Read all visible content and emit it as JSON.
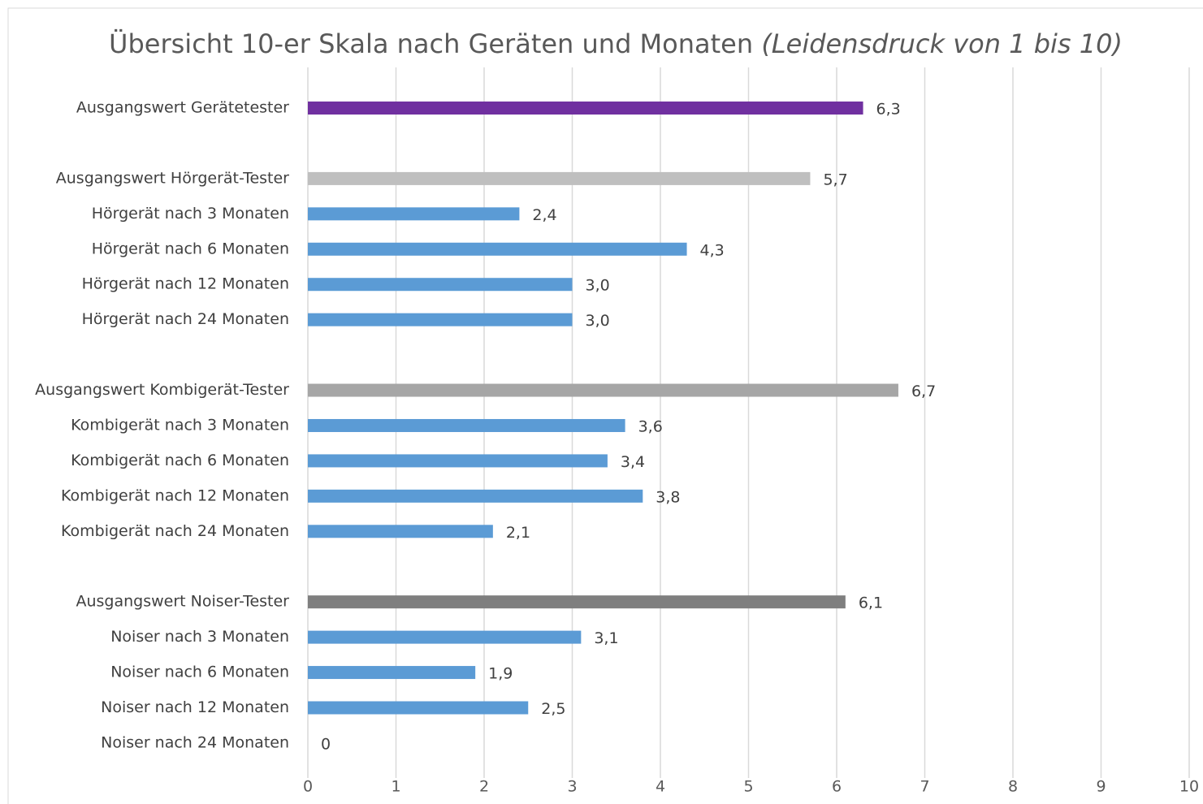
{
  "chart_data": {
    "type": "bar",
    "orientation": "horizontal",
    "title": "Übersicht 10-er Skala nach Geräten und Monaten",
    "subtitle": "(Leidensdruck von 1 bis 10)",
    "categories": [
      "Ausgangswert Gerätetester",
      null,
      "Ausgangswert Hörgerät-Tester",
      "Hörgerät nach 3 Monaten",
      "Hörgerät nach 6 Monaten",
      "Hörgerät nach 12 Monaten",
      "Hörgerät nach 24 Monaten",
      null,
      "Ausgangswert Kombigerät-Tester",
      "Kombigerät nach 3 Monaten",
      "Kombigerät nach 6 Monaten",
      "Kombigerät nach 12 Monaten",
      "Kombigerät nach 24 Monaten",
      null,
      "Ausgangswert Noiser-Tester",
      "Noiser nach 3 Monaten",
      "Noiser nach 6 Monaten",
      "Noiser nach 12 Monaten",
      "Noiser nach 24 Monaten"
    ],
    "values": [
      6.3,
      null,
      5.7,
      2.4,
      4.3,
      3.0,
      3.0,
      null,
      6.7,
      3.6,
      3.4,
      3.8,
      2.1,
      null,
      6.1,
      3.1,
      1.9,
      2.5,
      0
    ],
    "value_labels": [
      "6,3",
      null,
      "5,7",
      "2,4",
      "4,3",
      "3,0",
      "3,0",
      null,
      "6,7",
      "3,6",
      "3,4",
      "3,8",
      "2,1",
      null,
      "6,1",
      "3,1",
      "1,9",
      "2,5",
      "0"
    ],
    "colors": [
      "#7030a0",
      null,
      "#bfbfbf",
      "#5b9bd5",
      "#5b9bd5",
      "#5b9bd5",
      "#5b9bd5",
      null,
      "#a6a6a6",
      "#5b9bd5",
      "#5b9bd5",
      "#5b9bd5",
      "#5b9bd5",
      null,
      "#7f7f7f",
      "#5b9bd5",
      "#5b9bd5",
      "#5b9bd5",
      "#5b9bd5"
    ],
    "xlim": [
      0,
      10
    ],
    "xticks": [
      0,
      1,
      2,
      3,
      4,
      5,
      6,
      7,
      8,
      9,
      10
    ],
    "grid": true
  }
}
